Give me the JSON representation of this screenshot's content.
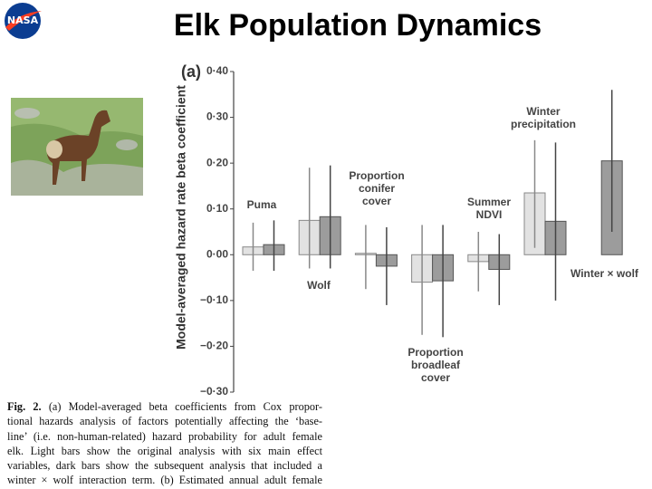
{
  "header": {
    "title": "Elk Population Dynamics",
    "logo_text": "NASA"
  },
  "chart_data": {
    "type": "bar",
    "panel_label": "(a)",
    "y_label": "Model-averaged hazard rate beta coefficient",
    "categories": [
      [
        "Puma"
      ],
      [
        "Wolf"
      ],
      [
        "Proportion",
        "conifer",
        "cover"
      ],
      [
        "Proportion",
        "broadleaf",
        "cover"
      ],
      [
        "Summer",
        "NDVI"
      ],
      [
        "Winter",
        "precipitation"
      ],
      [
        "Winter × wolf"
      ]
    ],
    "series": [
      {
        "color": "#e2e2e2",
        "values": [
          0.017,
          0.075,
          0.003,
          -0.06,
          -0.015,
          0.135,
          null
        ],
        "lower": [
          -0.035,
          -0.03,
          -0.075,
          -0.175,
          -0.08,
          0.015,
          null
        ],
        "upper": [
          0.07,
          0.19,
          0.065,
          0.065,
          0.05,
          0.25,
          null
        ]
      },
      {
        "color": "#9c9c9c",
        "values": [
          0.022,
          0.083,
          -0.025,
          -0.057,
          -0.032,
          0.073,
          0.205
        ],
        "lower": [
          -0.035,
          -0.03,
          -0.11,
          -0.18,
          -0.11,
          -0.1,
          0.05
        ],
        "upper": [
          0.075,
          0.195,
          0.06,
          0.065,
          0.045,
          0.245,
          0.36
        ]
      }
    ],
    "ylim": [
      -0.3,
      0.4
    ],
    "yticks": [
      {
        "value": 0.4,
        "label": "0·40"
      },
      {
        "value": 0.3,
        "label": "0·30"
      },
      {
        "value": 0.2,
        "label": "0·20"
      },
      {
        "value": 0.1,
        "label": "0·10"
      },
      {
        "value": 0,
        "label": "0·00"
      },
      {
        "value": -0.1,
        "label": "−0·10"
      },
      {
        "value": -0.2,
        "label": "−0·20"
      },
      {
        "value": -0.3,
        "label": "−0·30"
      }
    ]
  },
  "caption": {
    "label": "Fig. 2.",
    "lines": [
      "(a) Model-averaged beta coefficients from Cox propor-",
      "tional hazards analysis of factors potentially affecting the ‘base-",
      "line’ (i.e. non-human-related) hazard probability for adult female",
      "elk. Light bars show the original analysis with six main effect",
      "variables, dark bars show the subsequent analysis that included a",
      "winter × wolf interaction term. (b) Estimated annual adult female"
    ]
  }
}
